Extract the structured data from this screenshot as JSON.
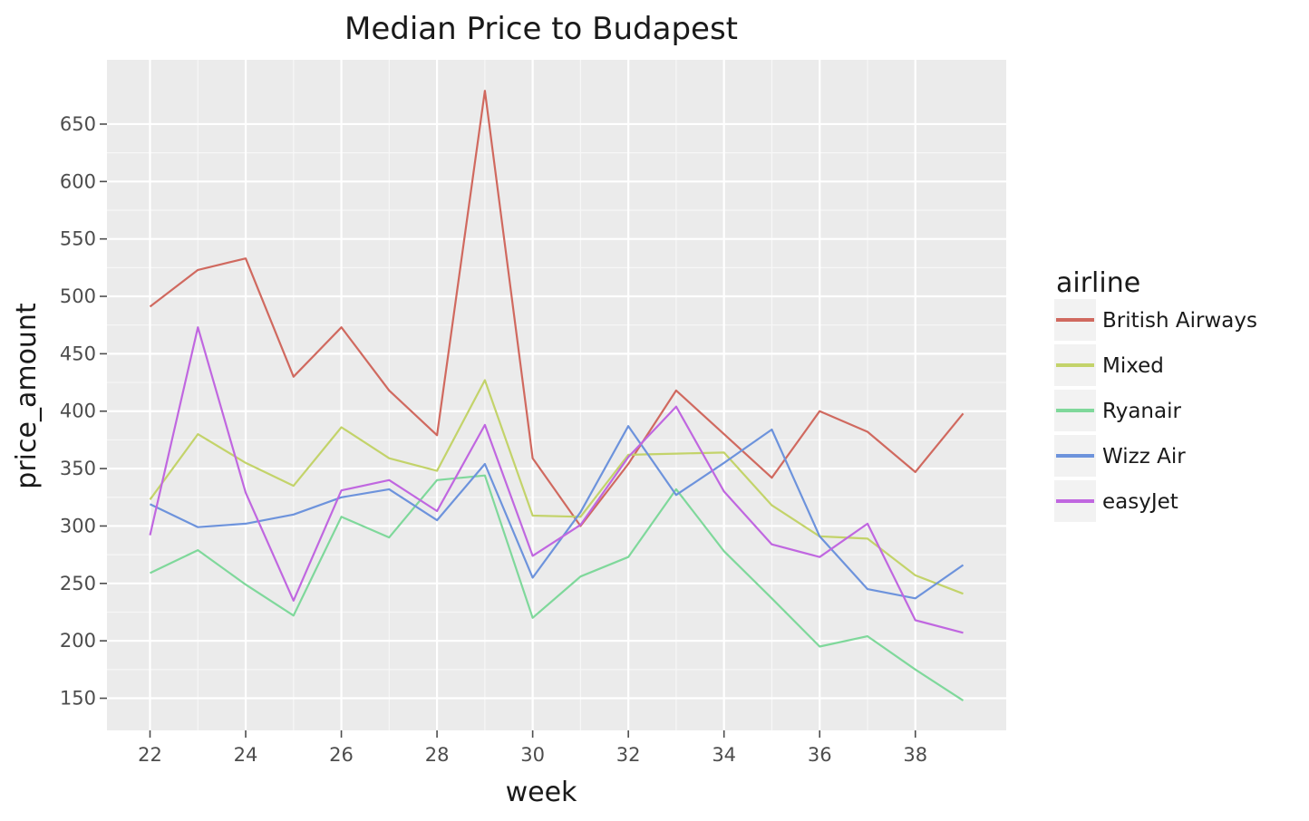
{
  "chart_data": {
    "type": "line",
    "title": "Median Price to Budapest",
    "xlabel": "week",
    "ylabel": "price_amount",
    "x": [
      22,
      23,
      24,
      25,
      26,
      27,
      28,
      29,
      30,
      31,
      32,
      33,
      34,
      35,
      36,
      37,
      38,
      39
    ],
    "xlim": [
      21.1,
      39.9
    ],
    "ylim": [
      122,
      706
    ],
    "xticks": [
      22,
      24,
      26,
      28,
      30,
      32,
      34,
      36,
      38
    ],
    "yticks": [
      150,
      200,
      250,
      300,
      350,
      400,
      450,
      500,
      550,
      600,
      650
    ],
    "grid": true,
    "legend": {
      "title": "airline",
      "placement": "right"
    },
    "series": [
      {
        "name": "British Airways",
        "color": "#d0695f",
        "values": [
          491,
          523,
          533,
          430,
          473,
          418,
          379,
          679,
          359,
          300,
          354,
          418,
          380,
          342,
          400,
          382,
          347,
          398
        ]
      },
      {
        "name": "Mixed",
        "color": "#c3d36a",
        "values": [
          323,
          380,
          355,
          335,
          386,
          359,
          348,
          427,
          309,
          308,
          362,
          363,
          364,
          318,
          291,
          289,
          257,
          241
        ]
      },
      {
        "name": "Ryanair",
        "color": "#7fd89b",
        "values": [
          259,
          279,
          249,
          222,
          308,
          290,
          340,
          344,
          220,
          256,
          273,
          332,
          278,
          237,
          195,
          204,
          175,
          148
        ]
      },
      {
        "name": "Wizz Air",
        "color": "#6d93dc",
        "values": [
          319,
          299,
          302,
          310,
          325,
          332,
          305,
          354,
          255,
          312,
          387,
          327,
          355,
          384,
          291,
          245,
          237,
          266
        ]
      },
      {
        "name": "easyJet",
        "color": "#c067e0",
        "values": [
          292,
          473,
          329,
          235,
          331,
          340,
          313,
          388,
          274,
          301,
          360,
          404,
          330,
          284,
          273,
          302,
          218,
          207
        ]
      }
    ]
  }
}
